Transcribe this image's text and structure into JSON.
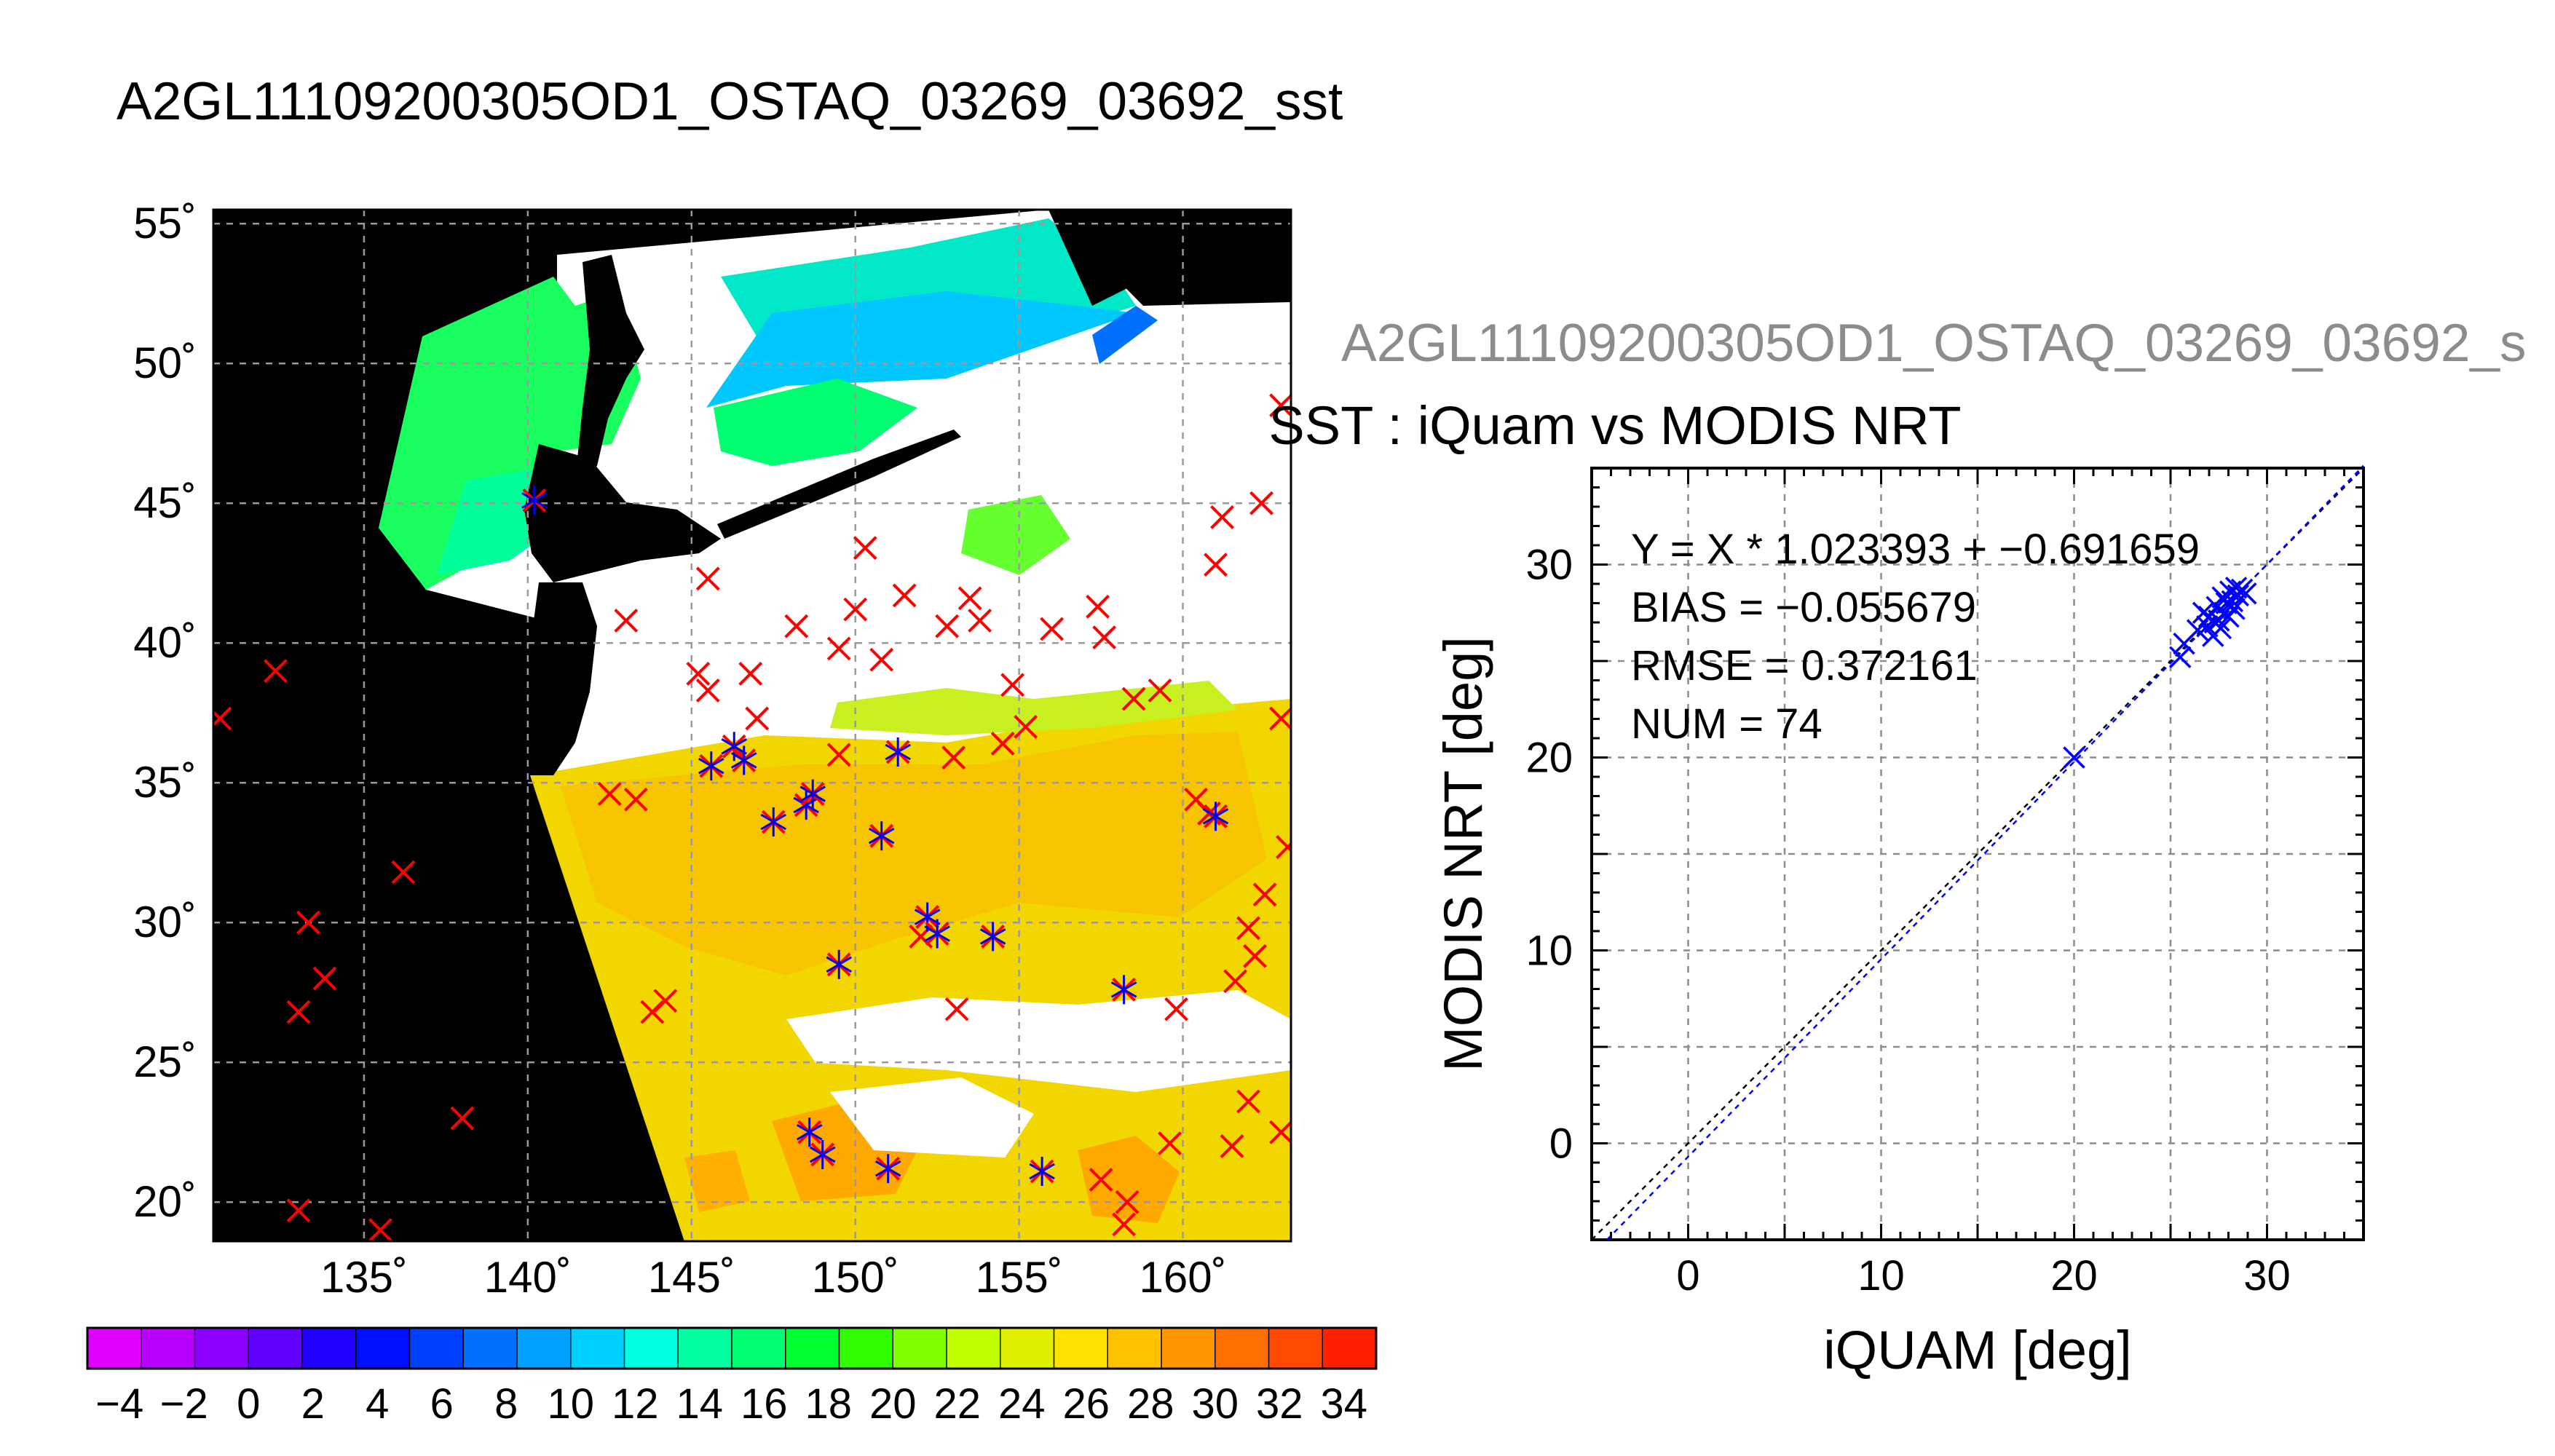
{
  "main_title": "A2GL11109200305OD1_OSTAQ_03269_03692_sst",
  "secondary_title": "A2GL11109200305OD1_OSTAQ_03269_03692_s",
  "chart_data": [
    {
      "type": "heatmap",
      "title": "",
      "x_ticks": [
        "135˚",
        "140˚",
        "145˚",
        "150˚",
        "155˚",
        "160˚"
      ],
      "y_ticks": [
        "20˚",
        "25˚",
        "30˚",
        "35˚",
        "40˚",
        "45˚",
        "50˚",
        "55˚"
      ],
      "xlim": [
        130.4,
        163.3
      ],
      "ylim": [
        18.6,
        55.5
      ],
      "grid": true,
      "colorbar": {
        "ticks": [
          "−4",
          "−2",
          "0",
          "2",
          "4",
          "6",
          "8",
          "10",
          "12",
          "14",
          "16",
          "18",
          "20",
          "22",
          "24",
          "26",
          "28",
          "30",
          "32",
          "34"
        ],
        "range": [
          -5,
          35
        ],
        "colors": [
          "#e000ff",
          "#b800ff",
          "#8c00ff",
          "#6000ff",
          "#2000ff",
          "#0010ff",
          "#0040ff",
          "#0070ff",
          "#00a0ff",
          "#00d0ff",
          "#00ffe0",
          "#00ffa0",
          "#00ff70",
          "#00ff30",
          "#30ff00",
          "#80ff00",
          "#c0ff00",
          "#e0ef00",
          "#ffe000",
          "#ffc000",
          "#ff9800",
          "#ff7000",
          "#ff4800",
          "#ff2000"
        ]
      },
      "matched_points": [
        {
          "lon": 140.2,
          "lat": 45.1
        },
        {
          "lon": 145.6,
          "lat": 35.6
        },
        {
          "lon": 146.3,
          "lat": 36.3
        },
        {
          "lon": 146.6,
          "lat": 35.8
        },
        {
          "lon": 147.5,
          "lat": 33.6
        },
        {
          "lon": 148.5,
          "lat": 34.2
        },
        {
          "lon": 148.7,
          "lat": 34.6
        },
        {
          "lon": 150.8,
          "lat": 33.1
        },
        {
          "lon": 149.5,
          "lat": 28.5
        },
        {
          "lon": 151.3,
          "lat": 36.1
        },
        {
          "lon": 152.2,
          "lat": 30.2
        },
        {
          "lon": 152.5,
          "lat": 29.6
        },
        {
          "lon": 154.2,
          "lat": 29.5
        },
        {
          "lon": 148.6,
          "lat": 22.5
        },
        {
          "lon": 149.0,
          "lat": 21.7
        },
        {
          "lon": 151.0,
          "lat": 21.2
        },
        {
          "lon": 155.7,
          "lat": 21.1
        },
        {
          "lon": 158.2,
          "lat": 27.6
        },
        {
          "lon": 161.0,
          "lat": 33.8
        }
      ],
      "unmatched_points": [
        {
          "lon": 130.6,
          "lat": 37.3
        },
        {
          "lon": 132.3,
          "lat": 39.0
        },
        {
          "lon": 133.3,
          "lat": 30.0
        },
        {
          "lon": 133.8,
          "lat": 28.0
        },
        {
          "lon": 133.0,
          "lat": 26.8
        },
        {
          "lon": 136.2,
          "lat": 31.8
        },
        {
          "lon": 138.0,
          "lat": 23.0
        },
        {
          "lon": 133.0,
          "lat": 19.7
        },
        {
          "lon": 135.5,
          "lat": 19.0
        },
        {
          "lon": 143.0,
          "lat": 40.8
        },
        {
          "lon": 142.5,
          "lat": 34.6
        },
        {
          "lon": 143.3,
          "lat": 34.4
        },
        {
          "lon": 145.5,
          "lat": 42.3
        },
        {
          "lon": 145.2,
          "lat": 38.9
        },
        {
          "lon": 145.5,
          "lat": 38.3
        },
        {
          "lon": 146.8,
          "lat": 38.9
        },
        {
          "lon": 147.0,
          "lat": 37.3
        },
        {
          "lon": 148.2,
          "lat": 40.6
        },
        {
          "lon": 149.5,
          "lat": 39.8
        },
        {
          "lon": 150.0,
          "lat": 41.2
        },
        {
          "lon": 150.3,
          "lat": 43.4
        },
        {
          "lon": 150.8,
          "lat": 39.4
        },
        {
          "lon": 151.5,
          "lat": 41.7
        },
        {
          "lon": 152.8,
          "lat": 40.6
        },
        {
          "lon": 153.5,
          "lat": 41.6
        },
        {
          "lon": 153.8,
          "lat": 40.8
        },
        {
          "lon": 155.2,
          "lat": 37.0
        },
        {
          "lon": 156.0,
          "lat": 40.5
        },
        {
          "lon": 157.4,
          "lat": 41.3
        },
        {
          "lon": 157.6,
          "lat": 40.2
        },
        {
          "lon": 158.5,
          "lat": 38.0
        },
        {
          "lon": 159.3,
          "lat": 38.3
        },
        {
          "lon": 154.8,
          "lat": 38.5
        },
        {
          "lon": 160.4,
          "lat": 34.4
        },
        {
          "lon": 160.8,
          "lat": 33.9
        },
        {
          "lon": 154.5,
          "lat": 36.4
        },
        {
          "lon": 153.0,
          "lat": 35.9
        },
        {
          "lon": 149.5,
          "lat": 36.0
        },
        {
          "lon": 143.8,
          "lat": 26.8
        },
        {
          "lon": 144.2,
          "lat": 27.2
        },
        {
          "lon": 153.1,
          "lat": 26.9
        },
        {
          "lon": 152.0,
          "lat": 29.5
        },
        {
          "lon": 159.8,
          "lat": 26.9
        },
        {
          "lon": 161.2,
          "lat": 44.5
        },
        {
          "lon": 161.0,
          "lat": 42.8
        },
        {
          "lon": 162.4,
          "lat": 45.0
        },
        {
          "lon": 163.0,
          "lat": 48.5
        },
        {
          "lon": 163.0,
          "lat": 37.3
        },
        {
          "lon": 163.2,
          "lat": 32.7
        },
        {
          "lon": 162.5,
          "lat": 31.0
        },
        {
          "lon": 162.0,
          "lat": 29.8
        },
        {
          "lon": 162.2,
          "lat": 28.8
        },
        {
          "lon": 161.6,
          "lat": 27.9
        },
        {
          "lon": 162.0,
          "lat": 23.6
        },
        {
          "lon": 163.0,
          "lat": 22.5
        },
        {
          "lon": 161.5,
          "lat": 22.0
        },
        {
          "lon": 159.6,
          "lat": 22.1
        },
        {
          "lon": 158.3,
          "lat": 20.0
        },
        {
          "lon": 158.2,
          "lat": 19.2
        },
        {
          "lon": 157.5,
          "lat": 20.8
        }
      ]
    },
    {
      "type": "scatter",
      "title": "SST : iQuam vs MODIS NRT",
      "xlabel": "iQUAM [deg]",
      "ylabel": "MODIS NRT [deg]",
      "xlim": [
        -5,
        35
      ],
      "ylim": [
        -5,
        35
      ],
      "x_ticks": [
        0,
        10,
        20,
        30
      ],
      "y_ticks": [
        0,
        10,
        20,
        30
      ],
      "grid": true,
      "annotations": [
        "Y = X * 1.023393 + −0.691659",
        "BIAS = −0.055679",
        "RMSE = 0.372161",
        "NUM = 74"
      ],
      "fit": {
        "slope": 1.023393,
        "intercept": -0.691659
      },
      "points": [
        {
          "x": 20.0,
          "y": 20.0
        },
        {
          "x": 25.5,
          "y": 25.2
        },
        {
          "x": 25.7,
          "y": 25.9
        },
        {
          "x": 26.4,
          "y": 26.6
        },
        {
          "x": 26.7,
          "y": 27.5
        },
        {
          "x": 26.9,
          "y": 26.8
        },
        {
          "x": 27.0,
          "y": 27.3
        },
        {
          "x": 27.2,
          "y": 26.3
        },
        {
          "x": 27.3,
          "y": 27.0
        },
        {
          "x": 27.4,
          "y": 27.8
        },
        {
          "x": 27.5,
          "y": 27.1
        },
        {
          "x": 27.6,
          "y": 26.7
        },
        {
          "x": 27.7,
          "y": 28.3
        },
        {
          "x": 27.8,
          "y": 27.5
        },
        {
          "x": 27.9,
          "y": 28.0
        },
        {
          "x": 28.0,
          "y": 27.3
        },
        {
          "x": 28.1,
          "y": 28.6
        },
        {
          "x": 28.2,
          "y": 28.1
        },
        {
          "x": 28.3,
          "y": 27.7
        },
        {
          "x": 28.4,
          "y": 28.8
        },
        {
          "x": 28.5,
          "y": 28.4
        },
        {
          "x": 28.7,
          "y": 28.7
        },
        {
          "x": 28.9,
          "y": 28.5
        }
      ]
    }
  ]
}
